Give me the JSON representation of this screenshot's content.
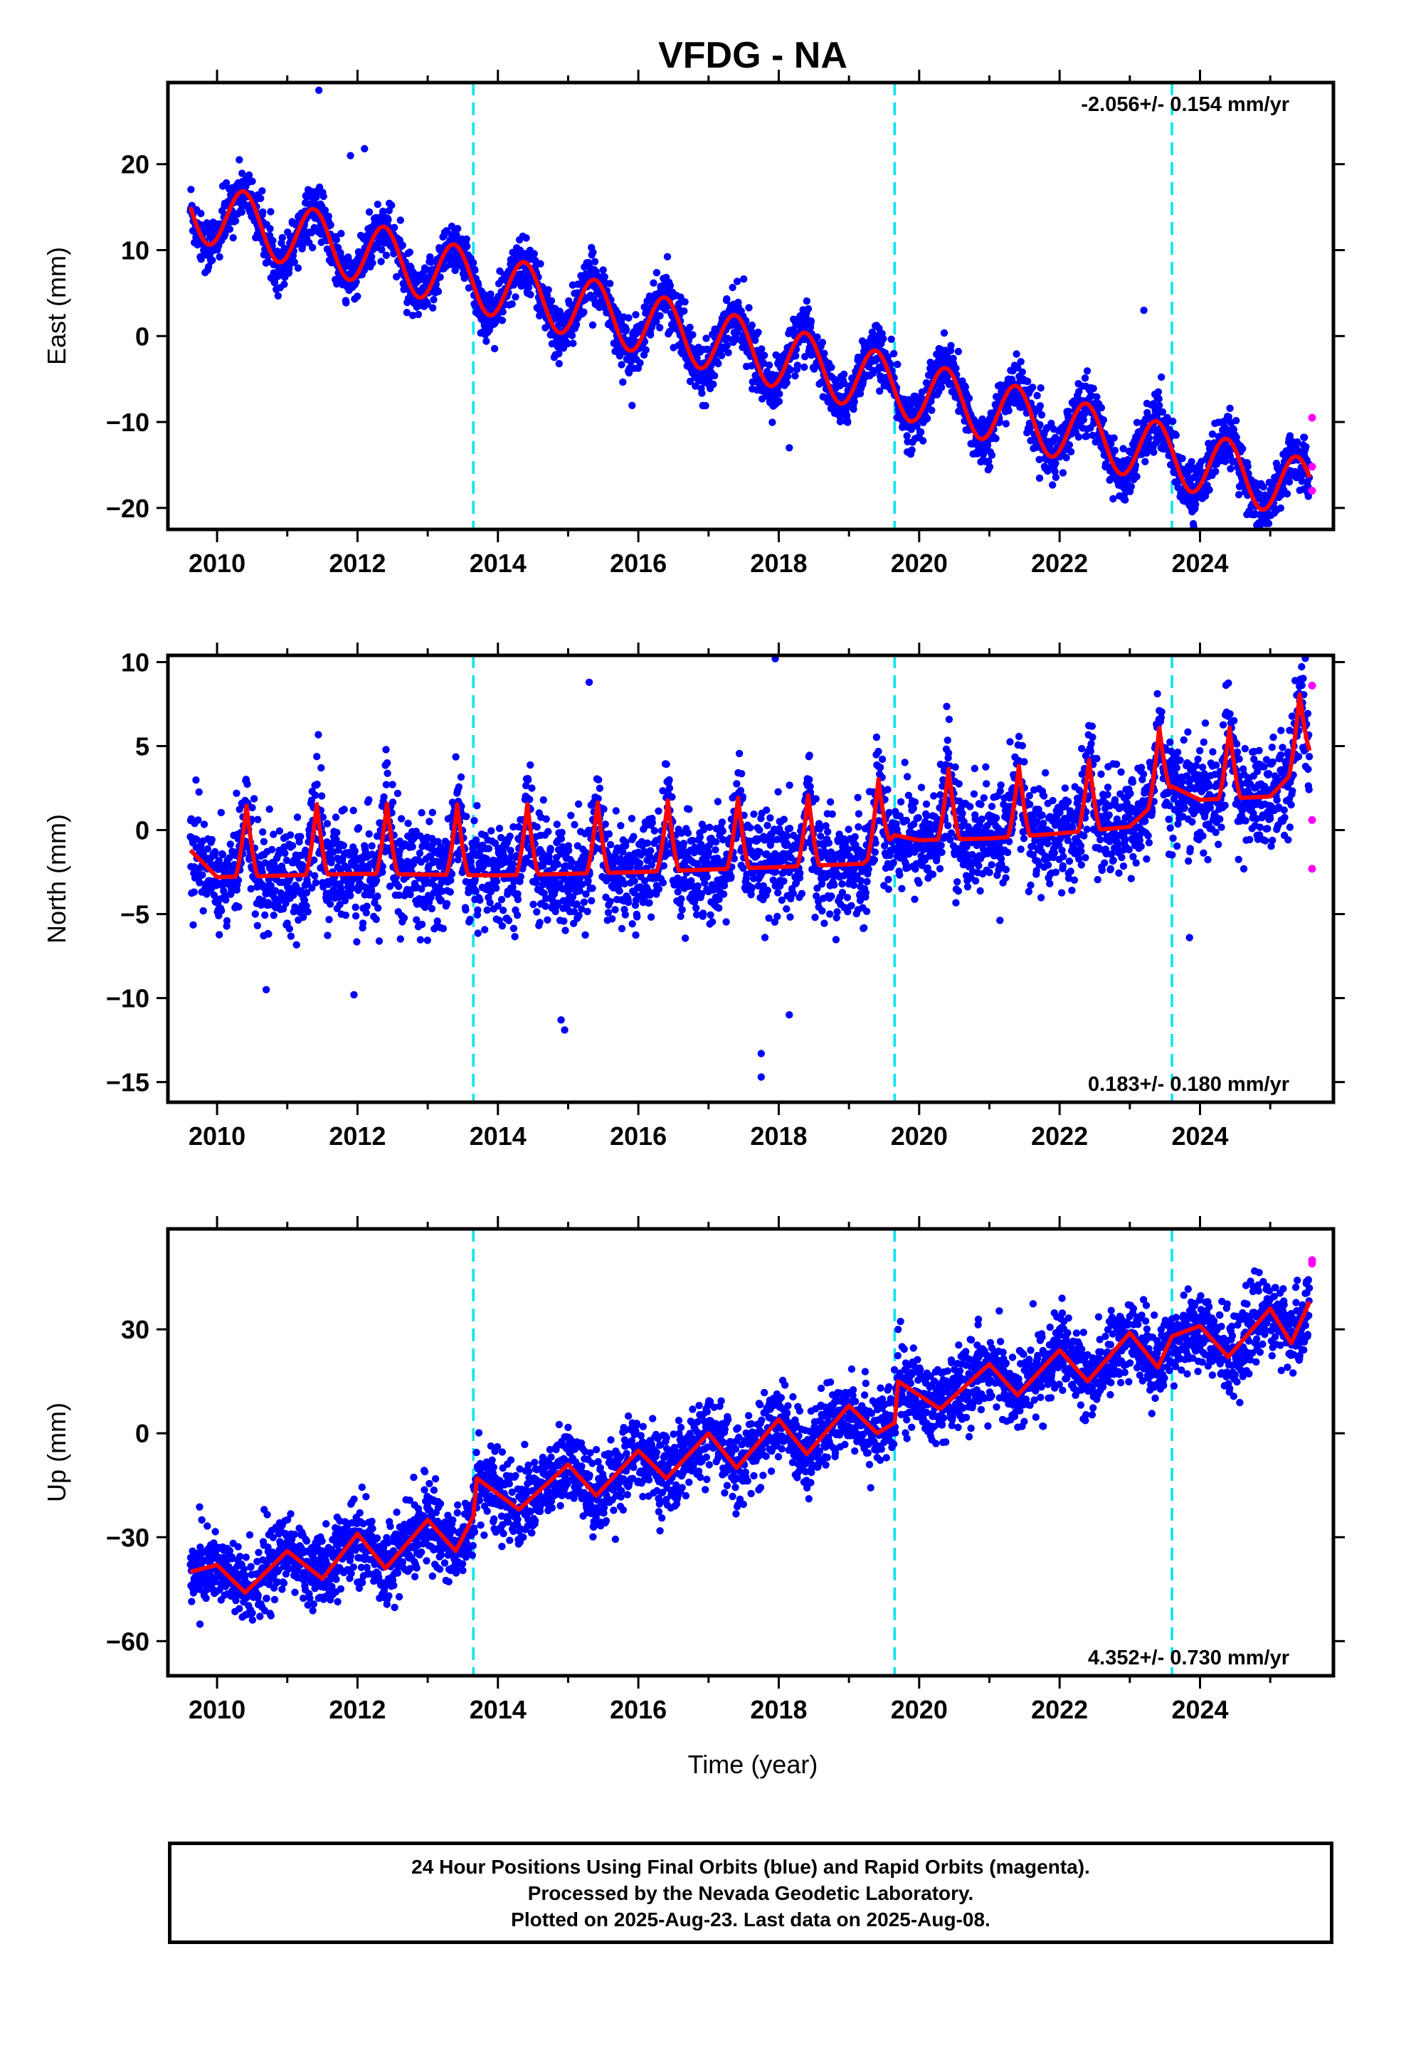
{
  "title": "VFDG - NA",
  "x_axis_label": "Time (year)",
  "x_ticks": [
    "2010",
    "2012",
    "2014",
    "2016",
    "2018",
    "2020",
    "2022",
    "2024"
  ],
  "footer": {
    "line1": "24 Hour Positions Using Final Orbits (blue) and Rapid Orbits (magenta).",
    "line2": "Processed by the Nevada Geodetic Laboratory.",
    "line3": "Plotted on 2025-Aug-23. Last data on 2025-Aug-08."
  },
  "colors": {
    "final_orbits": "#0000ff",
    "rapid_orbits": "#ff00ff",
    "model": "#ff0000",
    "equipment_change": "#00e5ee"
  },
  "chart_data": [
    {
      "type": "scatter",
      "component": "East",
      "ylabel": "East (mm)",
      "rate_text": "-2.056+/- 0.154 mm/yr",
      "rate_placement": "top-right",
      "xlim": [
        2009.3,
        2025.9
      ],
      "ylim": [
        -22.5,
        29.5
      ],
      "yticks": [
        20,
        10,
        0,
        -10,
        -20
      ],
      "y_tick_labels": [
        "20",
        "10",
        "0",
        "−10",
        "−20"
      ],
      "xticks": [
        2010,
        2012,
        2014,
        2016,
        2018,
        2020,
        2022,
        2024
      ],
      "grid": false,
      "equipment_changes": [
        2013.65,
        2019.65,
        2023.6
      ],
      "series": [
        {
          "kind": "final_orbits_scatter",
          "start": 2009.62,
          "end": 2025.56,
          "rate": -2.056,
          "offset_at_2010": 14.0,
          "annual_amplitude": 3.6,
          "annual_phase_peak": 0.38,
          "noise": 1.5
        },
        {
          "kind": "model_fit",
          "start": 2009.62,
          "end": 2025.56,
          "rate": -2.056,
          "offset_at_2010": 14.0,
          "annual_amplitude": 3.6,
          "annual_phase_peak": 0.38
        }
      ],
      "rapid_orbits_points": [
        [
          2025.6,
          -9.5
        ],
        [
          2025.6,
          -15.2
        ],
        [
          2025.6,
          -18.0
        ]
      ],
      "outliers": [
        [
          2011.45,
          28.6
        ],
        [
          2011.9,
          21.0
        ],
        [
          2012.1,
          21.8
        ],
        [
          2018.15,
          -13.0
        ],
        [
          2023.2,
          3.0
        ]
      ]
    },
    {
      "type": "scatter",
      "component": "North",
      "ylabel": "North (mm)",
      "rate_text": "0.183+/- 0.180 mm/yr",
      "rate_placement": "bottom-right",
      "xlim": [
        2009.3,
        2025.9
      ],
      "ylim": [
        -16.2,
        10.4
      ],
      "yticks": [
        10,
        5,
        0,
        -5,
        -10,
        -15
      ],
      "y_tick_labels": [
        "10",
        "5",
        "0",
        "−5",
        "−10",
        "−15"
      ],
      "xticks": [
        2010,
        2012,
        2014,
        2016,
        2018,
        2020,
        2022,
        2024
      ],
      "grid": false,
      "equipment_changes": [
        2013.65,
        2019.65,
        2023.6
      ],
      "series": [
        {
          "kind": "final_orbits_scatter",
          "start": 2009.62,
          "end": 2025.56,
          "noise": 1.5
        },
        {
          "kind": "model_fit",
          "start": 2009.62,
          "end": 2025.56
        }
      ],
      "model_knots": [
        [
          2009.62,
          -1.2
        ],
        [
          2010.0,
          -2.8
        ],
        [
          2012.0,
          -2.6
        ],
        [
          2014.0,
          -2.7
        ],
        [
          2016.0,
          -2.5
        ],
        [
          2018.0,
          -2.2
        ],
        [
          2019.2,
          -2.0
        ],
        [
          2019.65,
          -0.3
        ],
        [
          2020.0,
          -0.6
        ],
        [
          2021.0,
          -0.5
        ],
        [
          2022.0,
          -0.2
        ],
        [
          2023.0,
          0.2
        ],
        [
          2023.6,
          2.6
        ],
        [
          2024.0,
          1.8
        ],
        [
          2025.0,
          2.0
        ],
        [
          2025.56,
          4.5
        ]
      ],
      "seasonal_peak_amplitude": 4.2,
      "rapid_orbits_points": [
        [
          2025.6,
          8.6
        ],
        [
          2025.6,
          0.6
        ],
        [
          2025.6,
          -2.3
        ]
      ],
      "outliers": [
        [
          2017.95,
          10.2
        ],
        [
          2017.75,
          -13.3
        ],
        [
          2017.75,
          -14.7
        ],
        [
          2018.15,
          -11.0
        ],
        [
          2010.7,
          -9.5
        ],
        [
          2011.95,
          -9.8
        ],
        [
          2014.9,
          -11.3
        ],
        [
          2015.3,
          8.8
        ],
        [
          2014.95,
          -11.9
        ],
        [
          2023.85,
          -6.4
        ]
      ]
    },
    {
      "type": "scatter",
      "component": "Up",
      "ylabel": "Up (mm)",
      "rate_text": "4.352+/- 0.730 mm/yr",
      "rate_placement": "bottom-right",
      "xlim": [
        2009.3,
        2025.9
      ],
      "ylim": [
        -70,
        59
      ],
      "yticks": [
        30,
        0,
        -30,
        -60
      ],
      "y_tick_labels": [
        "30",
        "0",
        "−30",
        "−60"
      ],
      "xticks": [
        2010,
        2012,
        2014,
        2016,
        2018,
        2020,
        2022,
        2024
      ],
      "xlabel": "Time (year)",
      "grid": false,
      "equipment_changes": [
        2013.65,
        2019.65,
        2023.6
      ],
      "series": [
        {
          "kind": "final_orbits_scatter",
          "start": 2009.62,
          "end": 2025.56,
          "noise": 5.5
        },
        {
          "kind": "model_fit",
          "start": 2009.62,
          "end": 2025.56
        }
      ],
      "model_knots": [
        [
          2009.62,
          -40.0
        ],
        [
          2010.0,
          -38.0
        ],
        [
          2010.4,
          -46.0
        ],
        [
          2011.0,
          -34.0
        ],
        [
          2011.5,
          -42.0
        ],
        [
          2012.0,
          -29.0
        ],
        [
          2012.4,
          -39.0
        ],
        [
          2013.0,
          -25.0
        ],
        [
          2013.4,
          -34.0
        ],
        [
          2013.65,
          -24.0
        ],
        [
          2013.7,
          -13.0
        ],
        [
          2014.3,
          -22.0
        ],
        [
          2015.0,
          -9.0
        ],
        [
          2015.4,
          -18.0
        ],
        [
          2016.0,
          -5.0
        ],
        [
          2016.4,
          -13.0
        ],
        [
          2017.0,
          0.0
        ],
        [
          2017.4,
          -10.0
        ],
        [
          2018.0,
          4.0
        ],
        [
          2018.4,
          -6.0
        ],
        [
          2019.0,
          8.0
        ],
        [
          2019.4,
          0.0
        ],
        [
          2019.65,
          3.0
        ],
        [
          2019.7,
          15.0
        ],
        [
          2020.3,
          7.0
        ],
        [
          2021.0,
          20.0
        ],
        [
          2021.4,
          11.0
        ],
        [
          2022.0,
          24.0
        ],
        [
          2022.4,
          15.0
        ],
        [
          2023.0,
          29.0
        ],
        [
          2023.4,
          19.0
        ],
        [
          2023.6,
          28.0
        ],
        [
          2024.0,
          31.0
        ],
        [
          2024.4,
          22.0
        ],
        [
          2025.0,
          36.0
        ],
        [
          2025.3,
          26.0
        ],
        [
          2025.56,
          38.0
        ]
      ],
      "rapid_orbits_points": [
        [
          2025.6,
          50.0
        ],
        [
          2025.6,
          49.0
        ]
      ]
    }
  ]
}
